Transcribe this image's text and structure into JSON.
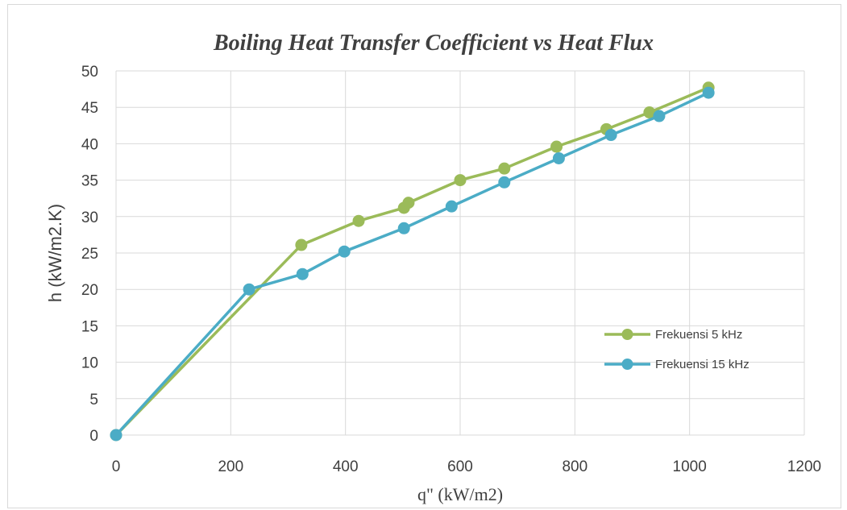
{
  "chart_data": {
    "type": "line",
    "title": "Boiling Heat Transfer Coefficient vs Heat Flux",
    "xlabel": "q\" (kW/m2)",
    "ylabel": "h (kW/m2.K)",
    "xlim": [
      0,
      1200
    ],
    "ylim": [
      0,
      50
    ],
    "xticks": [
      "0",
      "200",
      "400",
      "600",
      "800",
      "1000",
      "1200"
    ],
    "yticks": [
      "0",
      "5",
      "10",
      "15",
      "20",
      "25",
      "30",
      "35",
      "40",
      "45",
      "50"
    ],
    "grid": true,
    "legend_position": "right",
    "series": [
      {
        "name": "Frekuensi 5 kHz",
        "color": "#9bbb59",
        "x": [
          0,
          323,
          423,
          502,
          510,
          600,
          677,
          768,
          855,
          930,
          1033
        ],
        "y": [
          0,
          26.1,
          29.4,
          31.2,
          31.9,
          35.0,
          36.6,
          39.6,
          42.0,
          44.3,
          47.7
        ]
      },
      {
        "name": "Frekuensi 15 kHz",
        "color": "#4bacc6",
        "x": [
          0,
          232,
          325,
          398,
          502,
          585,
          677,
          772,
          863,
          947,
          1033
        ],
        "y": [
          0,
          20.0,
          22.1,
          25.2,
          28.4,
          31.4,
          34.7,
          38.0,
          41.2,
          43.8,
          47.0
        ]
      }
    ]
  }
}
